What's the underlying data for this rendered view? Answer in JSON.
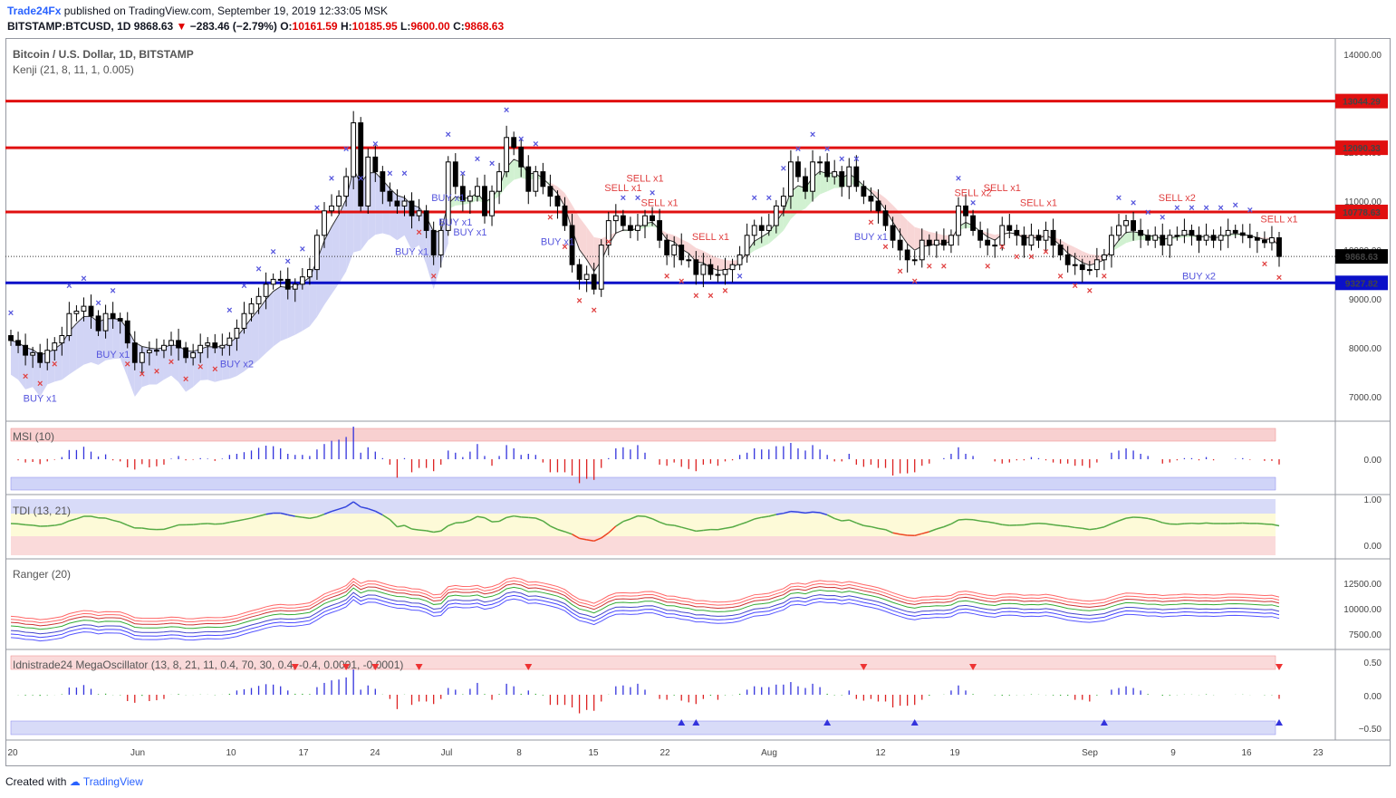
{
  "header": {
    "brand": "Trade24Fx",
    "published": "published on TradingView.com, September 19, 2019 12:33:05 MSK",
    "symbol": "BITSTAMP:BTCUSD, 1D",
    "last": "9868.63",
    "change": "−283.46 (−2.79%)",
    "ohlc_o_label": "O:",
    "ohlc_o": "10161.59",
    "ohlc_h_label": "H:",
    "ohlc_h": "10185.95",
    "ohlc_l_label": "L:",
    "ohlc_l": "9600.00",
    "ohlc_c_label": "C:",
    "ohlc_c": "9868.63"
  },
  "footer": {
    "created": "Created with",
    "tv": "TradingView"
  },
  "colors": {
    "up_fill": "#ffffff",
    "down_fill": "#000000",
    "resistance": "#e01010",
    "support": "#0a10c8",
    "buy": "#5555dd",
    "sell": "#e04040",
    "cloud_blue": "#c9ccf3",
    "cloud_green": "#c9efc9",
    "cloud_red": "#f7cfcf"
  },
  "chart_data": [
    {
      "type": "candlestick",
      "title": "Bitcoin / U.S. Dollar, 1D, BITSTAMP",
      "indicator": "Kenji (21, 8, 11, 1, 0.005)",
      "ylim": [
        6500,
        14500
      ],
      "y_ticks": [
        "14000.00",
        "13000.00",
        "12000.00",
        "11000.00",
        "10000.00",
        "9000.00",
        "8000.00",
        "7000.00"
      ],
      "x_ticks": [
        "20",
        "Jun",
        "10",
        "17",
        "24",
        "Jul",
        "8",
        "15",
        "22",
        "Aug",
        "12",
        "19",
        "Sep",
        "9",
        "16",
        "23"
      ],
      "horizontal_levels": [
        {
          "value": 13044.29,
          "label": "13044.29",
          "color": "#e01010"
        },
        {
          "value": 12090.33,
          "label": "12090.33",
          "color": "#e01010"
        },
        {
          "value": 10778.63,
          "label": "10778.63",
          "color": "#e01010"
        },
        {
          "value": 9327.82,
          "label": "9327.82",
          "color": "#0a10c8"
        }
      ],
      "last_price": {
        "value": 9868.63,
        "label": "9868.63"
      },
      "signals": [
        {
          "text": "BUY x1",
          "type": "buy",
          "bar": 4
        },
        {
          "text": "BUY x1",
          "type": "buy",
          "bar": 14
        },
        {
          "text": "BUY x2",
          "type": "buy",
          "bar": 31
        },
        {
          "text": "BUY x1",
          "type": "buy",
          "bar": 55
        },
        {
          "text": "BUY x1",
          "type": "buy",
          "bar": 63
        },
        {
          "text": "BUY x1",
          "type": "buy",
          "bar": 60
        },
        {
          "text": "BUY x1",
          "type": "buy",
          "bar": 61
        },
        {
          "text": "BUY x1",
          "type": "buy",
          "bar": 75
        },
        {
          "text": "SELL x1",
          "type": "sell",
          "bar": 84
        },
        {
          "text": "SELL x1",
          "type": "sell",
          "bar": 87
        },
        {
          "text": "SELL x1",
          "type": "sell",
          "bar": 89
        },
        {
          "text": "SELL x1",
          "type": "sell",
          "bar": 96
        },
        {
          "text": "BUY x1",
          "type": "buy",
          "bar": 118
        },
        {
          "text": "SELL x2",
          "type": "sell",
          "bar": 132
        },
        {
          "text": "SELL x1",
          "type": "sell",
          "bar": 136
        },
        {
          "text": "SELL x1",
          "type": "sell",
          "bar": 141
        },
        {
          "text": "SELL x2",
          "type": "sell",
          "bar": 160
        },
        {
          "text": "BUY x2",
          "type": "buy",
          "bar": 163
        },
        {
          "text": "SELL x1",
          "type": "sell",
          "bar": 174
        }
      ],
      "closes": [
        8150,
        8050,
        7850,
        7900,
        7700,
        7950,
        8100,
        8250,
        8700,
        8750,
        8850,
        8650,
        8350,
        8700,
        8600,
        8550,
        8100,
        7700,
        7900,
        7950,
        7950,
        8050,
        8150,
        8000,
        7800,
        7900,
        8050,
        8100,
        8000,
        8050,
        8200,
        8400,
        8700,
        8900,
        9050,
        9300,
        9400,
        9400,
        9200,
        9300,
        9450,
        9600,
        10300,
        10800,
        10900,
        11100,
        11500,
        12600,
        10900,
        11900,
        11600,
        11200,
        11000,
        10900,
        11000,
        10700,
        10800,
        10400,
        9900,
        10400,
        11800,
        11300,
        11000,
        11100,
        11300,
        10700,
        11200,
        11600,
        12300,
        12100,
        11700,
        11200,
        11600,
        11300,
        11100,
        10900,
        10500,
        9700,
        9400,
        9500,
        9200,
        10100,
        10600,
        10700,
        10500,
        10400,
        10500,
        10700,
        10600,
        10200,
        9900,
        10100,
        9800,
        9800,
        9500,
        9700,
        9500,
        9500,
        9600,
        9700,
        9900,
        10300,
        10500,
        10400,
        10500,
        10900,
        11100,
        11800,
        11500,
        11200,
        11800,
        11800,
        11500,
        11600,
        11300,
        11700,
        11300,
        11100,
        11000,
        10800,
        10500,
        10200,
        10000,
        9800,
        9800,
        10200,
        10100,
        10200,
        10100,
        10300,
        10900,
        10700,
        10400,
        10200,
        10100,
        10100,
        10500,
        10400,
        10300,
        10100,
        10300,
        10200,
        10400,
        10100,
        9900,
        9700,
        9700,
        9600,
        9600,
        9800,
        9900,
        10300,
        10500,
        10600,
        10400,
        10300,
        10200,
        10300,
        10100,
        10300,
        10300,
        10400,
        10300,
        10200,
        10300,
        10200,
        10300,
        10400,
        10350,
        10300,
        10250,
        10200,
        10150,
        10250,
        9868
      ],
      "panels": [
        {
          "name": "MSI (10)",
          "ticks": [
            "0.00"
          ]
        },
        {
          "name": "TDI (13, 21)",
          "ticks": [
            "1.00",
            "0.00"
          ]
        },
        {
          "name": "Ranger (20)",
          "ticks": [
            "12500.00",
            "10000.00",
            "7500.00"
          ]
        },
        {
          "name": "Idnistrade24 MegaOscillator (13, 8, 21, 11, 0.4, 70, 30, 0.4, -0.4, 0.0001, -0.0001)",
          "ticks": [
            "0.50",
            "0.00",
            "−0.50"
          ]
        }
      ]
    }
  ]
}
